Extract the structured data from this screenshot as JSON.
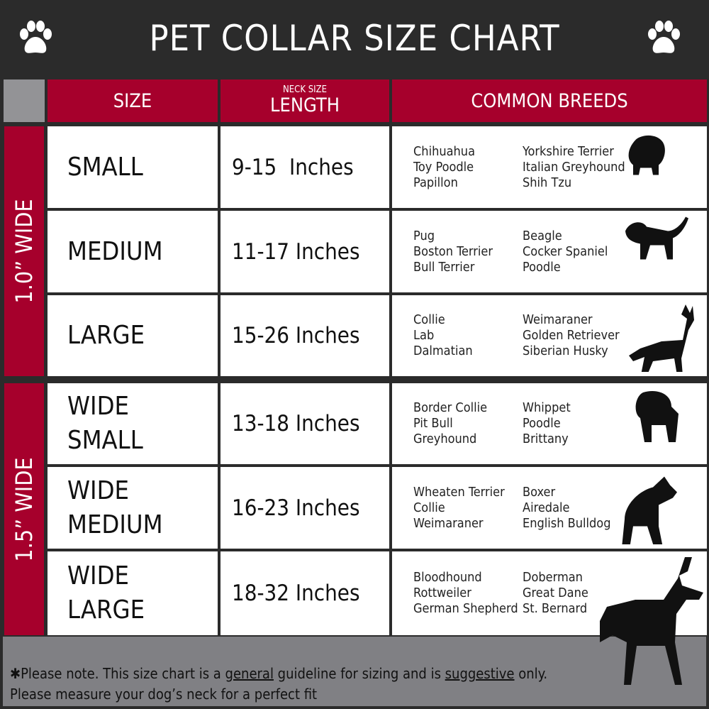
{
  "title": "PET COLLAR SIZE CHART",
  "headers": {
    "size": "SIZE",
    "length_small": "NECK SIZE",
    "length": "LENGTH",
    "breeds": "COMMON BREEDS"
  },
  "groups": [
    {
      "label": "1.0” WIDE"
    },
    {
      "label": "1.5” WIDE"
    }
  ],
  "rows": [
    {
      "size": "SMALL",
      "length": "9-15  Inches",
      "breeds_a": [
        "Chihuahua",
        "Toy Poodle",
        "Papillon"
      ],
      "breeds_b": [
        "Yorkshire Terrier",
        "Italian Greyhound",
        "Shih Tzu"
      ]
    },
    {
      "size": "MEDIUM",
      "length": "11-17 Inches",
      "breeds_a": [
        "Pug",
        "Boston Terrier",
        "Bull Terrier"
      ],
      "breeds_b": [
        "Beagle",
        "Cocker Spaniel",
        "Poodle"
      ]
    },
    {
      "size": "LARGE",
      "length": "15-26 Inches",
      "breeds_a": [
        "Collie",
        "Lab",
        "Dalmatian"
      ],
      "breeds_b": [
        "Weimaraner",
        "Golden Retriever",
        "Siberian Husky"
      ]
    },
    {
      "size": "WIDE SMALL",
      "length": "13-18 Inches",
      "breeds_a": [
        "Border Collie",
        "Pit Bull",
        "Greyhound"
      ],
      "breeds_b": [
        "Whippet",
        "Poodle",
        "Brittany"
      ]
    },
    {
      "size": "WIDE MEDIUM",
      "length": "16-23 Inches",
      "breeds_a": [
        "Wheaten Terrier",
        "Collie",
        "Weimaraner"
      ],
      "breeds_b": [
        "Boxer",
        "Airedale",
        "English Bulldog"
      ]
    },
    {
      "size": "WIDE LARGE",
      "length": "18-32 Inches",
      "breeds_a": [
        "Bloodhound",
        "Rottweiler",
        "German Shepherd"
      ],
      "breeds_b": [
        "Doberman",
        "Great Dane",
        "St. Bernard"
      ]
    }
  ],
  "footer": {
    "l1a": "✱Please note. This size chart is a ",
    "l1b": "general",
    "l1c": " guideline for sizing and is ",
    "l1d": "suggestive",
    "l1e": " only.",
    "l2": "Please measure your dog’s neck for a perfect fit"
  },
  "colors": {
    "header_bg": "#2b2b2b",
    "accent_red": "#a6002c",
    "footer_gray": "#808084"
  },
  "icons": [
    "paw-icon",
    "dog-silhouette-icon"
  ]
}
